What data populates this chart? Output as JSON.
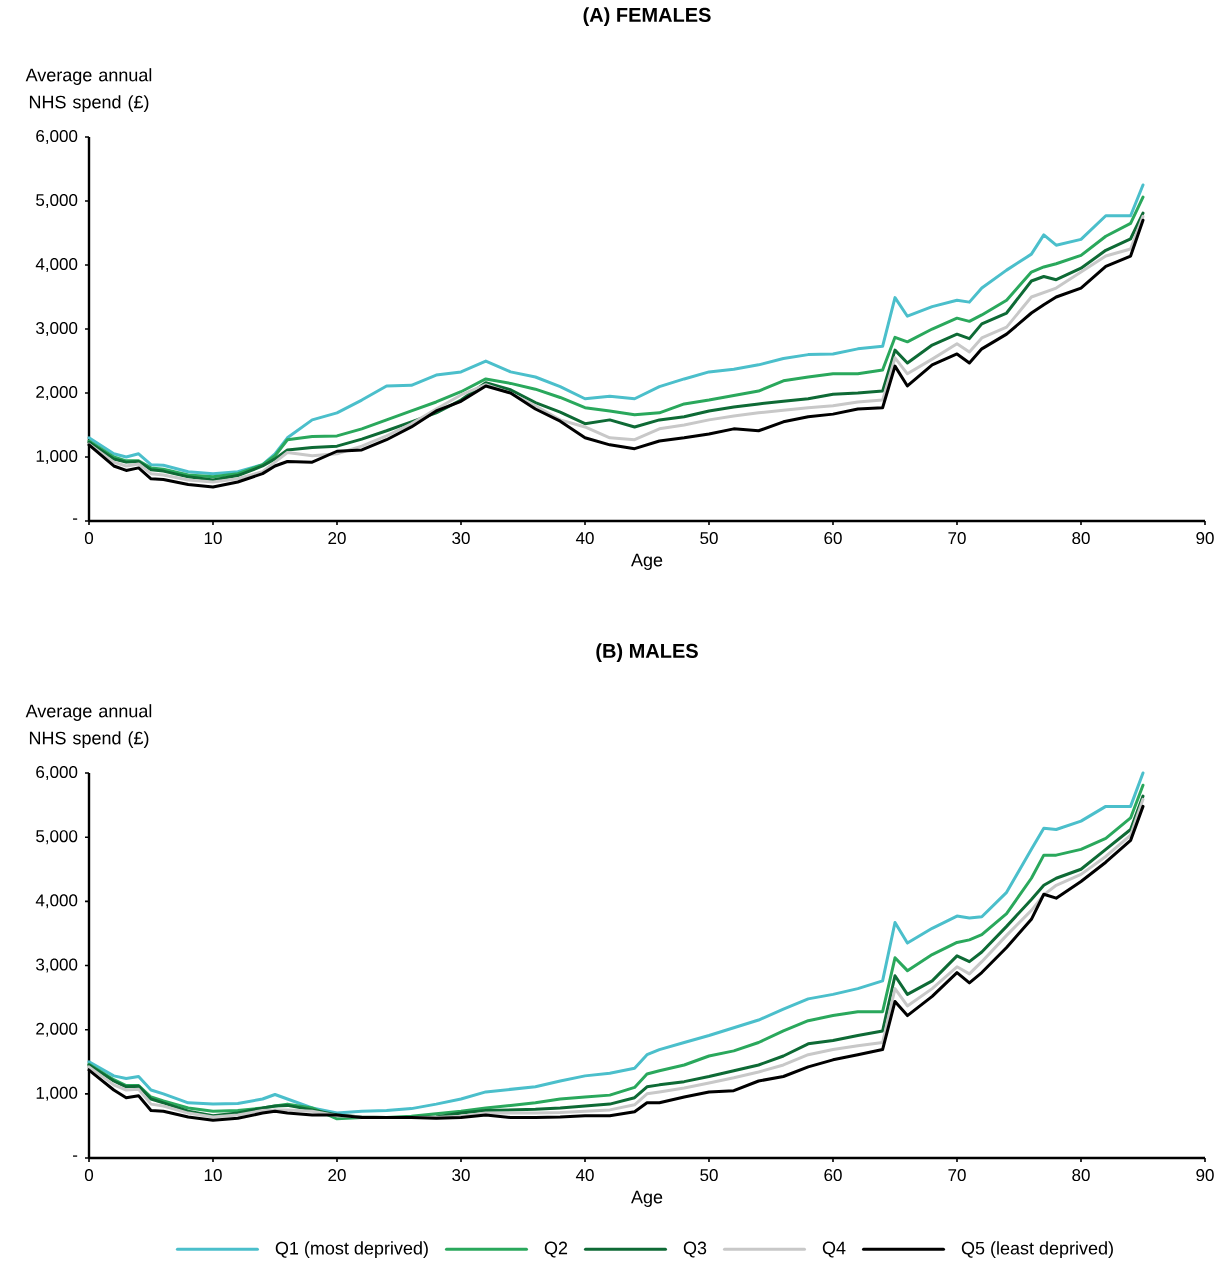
{
  "chart_data": [
    {
      "type": "line",
      "title": "(A) FEMALES",
      "xlabel": "Age",
      "ylabel": "Average annual NHS spend (£)",
      "x": [
        0,
        2,
        3,
        4,
        5,
        6,
        8,
        10,
        12,
        14,
        15,
        16,
        18,
        20,
        22,
        24,
        26,
        28,
        30,
        32,
        34,
        36,
        38,
        40,
        42,
        44,
        46,
        48,
        50,
        52,
        54,
        56,
        58,
        60,
        62,
        64,
        65,
        66,
        68,
        70,
        71,
        72,
        74,
        76,
        77,
        78,
        80,
        82,
        84,
        85
      ],
      "xlim": [
        0,
        90
      ],
      "xticks": [
        0,
        10,
        20,
        30,
        40,
        50,
        60,
        70,
        80,
        90
      ],
      "ylim": [
        0,
        6000
      ],
      "yticks": [
        {
          "value": 0,
          "label": "-"
        },
        {
          "value": 1000,
          "label": "1,000"
        },
        {
          "value": 2000,
          "label": "2,000"
        },
        {
          "value": 3000,
          "label": "3,000"
        },
        {
          "value": 4000,
          "label": "4,000"
        },
        {
          "value": 5000,
          "label": "5,000"
        },
        {
          "value": 6000,
          "label": "6,000"
        }
      ],
      "series": [
        {
          "color": "#4bbfcb",
          "values": [
            1300,
            1050,
            1000,
            1050,
            880,
            870,
            770,
            740,
            770,
            880,
            1050,
            1300,
            1580,
            1690,
            1890,
            2110,
            2120,
            2280,
            2330,
            2500,
            2330,
            2250,
            2100,
            1910,
            1950,
            1910,
            2100,
            2220,
            2330,
            2370,
            2440,
            2540,
            2600,
            2610,
            2690,
            2730,
            3490,
            3200,
            3350,
            3450,
            3420,
            3640,
            3920,
            4170,
            4470,
            4310,
            4400,
            4770,
            4770,
            5250
          ]
        },
        {
          "color": "#2aa85c",
          "values": [
            1250,
            1000,
            940,
            940,
            830,
            810,
            720,
            690,
            740,
            880,
            1020,
            1270,
            1320,
            1330,
            1440,
            1580,
            1720,
            1860,
            2020,
            2220,
            2150,
            2060,
            1930,
            1770,
            1720,
            1660,
            1690,
            1830,
            1890,
            1960,
            2030,
            2190,
            2250,
            2300,
            2300,
            2360,
            2870,
            2800,
            3000,
            3170,
            3120,
            3220,
            3450,
            3890,
            3970,
            4020,
            4150,
            4450,
            4650,
            5060
          ]
        },
        {
          "color": "#0e6a35",
          "values": [
            1230,
            970,
            920,
            930,
            800,
            780,
            690,
            640,
            710,
            860,
            970,
            1110,
            1150,
            1170,
            1280,
            1410,
            1550,
            1690,
            1890,
            2160,
            2050,
            1850,
            1700,
            1520,
            1580,
            1470,
            1580,
            1630,
            1720,
            1780,
            1830,
            1870,
            1910,
            1980,
            2000,
            2030,
            2670,
            2470,
            2750,
            2920,
            2850,
            3080,
            3250,
            3750,
            3820,
            3770,
            3950,
            4230,
            4410,
            4810
          ]
        },
        {
          "color": "#c8c8c8",
          "values": [
            1200,
            920,
            860,
            890,
            740,
            720,
            640,
            610,
            660,
            770,
            920,
            1070,
            1020,
            1050,
            1170,
            1330,
            1520,
            1750,
            1970,
            2130,
            2000,
            1800,
            1580,
            1470,
            1300,
            1270,
            1440,
            1500,
            1580,
            1640,
            1690,
            1730,
            1770,
            1800,
            1860,
            1890,
            2550,
            2300,
            2530,
            2770,
            2640,
            2860,
            3030,
            3500,
            3570,
            3640,
            3890,
            4140,
            4250,
            4760
          ]
        },
        {
          "color": "#000000",
          "values": [
            1190,
            860,
            790,
            830,
            660,
            650,
            570,
            530,
            610,
            740,
            860,
            930,
            920,
            1090,
            1110,
            1270,
            1470,
            1720,
            1870,
            2110,
            2000,
            1750,
            1560,
            1300,
            1190,
            1130,
            1250,
            1300,
            1360,
            1440,
            1410,
            1550,
            1630,
            1670,
            1750,
            1770,
            2420,
            2110,
            2440,
            2610,
            2470,
            2690,
            2920,
            3250,
            3380,
            3500,
            3640,
            3980,
            4140,
            4700
          ]
        }
      ]
    },
    {
      "type": "line",
      "title": "(B) MALES",
      "xlabel": "Age",
      "ylabel": "Average annual NHS spend (£)",
      "legend": "bottom",
      "x": [
        0,
        2,
        3,
        4,
        5,
        6,
        8,
        10,
        12,
        14,
        15,
        16,
        18,
        20,
        22,
        24,
        26,
        28,
        30,
        32,
        34,
        36,
        38,
        40,
        42,
        44,
        45,
        46,
        48,
        50,
        52,
        54,
        56,
        58,
        60,
        62,
        64,
        65,
        66,
        68,
        70,
        71,
        72,
        74,
        76,
        77,
        78,
        80,
        82,
        84,
        85
      ],
      "xlim": [
        0,
        90
      ],
      "xticks": [
        0,
        10,
        20,
        30,
        40,
        50,
        60,
        70,
        80,
        90
      ],
      "ylim": [
        0,
        6000
      ],
      "yticks": [
        {
          "value": 0,
          "label": "-"
        },
        {
          "value": 1000,
          "label": "1,000"
        },
        {
          "value": 2000,
          "label": "2,000"
        },
        {
          "value": 3000,
          "label": "3,000"
        },
        {
          "value": 4000,
          "label": "4,000"
        },
        {
          "value": 5000,
          "label": "5,000"
        },
        {
          "value": 6000,
          "label": "6,000"
        }
      ],
      "series": [
        {
          "name": "Q1 (most deprived)",
          "color": "#4bbfcb",
          "values": [
            1500,
            1280,
            1240,
            1270,
            1060,
            1000,
            860,
            840,
            850,
            920,
            990,
            920,
            780,
            700,
            730,
            740,
            770,
            840,
            920,
            1030,
            1070,
            1110,
            1200,
            1280,
            1320,
            1400,
            1610,
            1690,
            1800,
            1910,
            2030,
            2150,
            2320,
            2480,
            2550,
            2640,
            2760,
            3670,
            3350,
            3580,
            3770,
            3740,
            3760,
            4140,
            4810,
            5140,
            5120,
            5250,
            5480,
            5480,
            6000
          ]
        },
        {
          "name": "Q2",
          "color": "#2aa85c",
          "values": [
            1460,
            1220,
            1130,
            1130,
            950,
            890,
            780,
            730,
            740,
            780,
            810,
            840,
            780,
            610,
            630,
            630,
            650,
            690,
            730,
            780,
            820,
            860,
            920,
            950,
            980,
            1100,
            1310,
            1360,
            1450,
            1590,
            1670,
            1800,
            1980,
            2140,
            2220,
            2280,
            2280,
            3120,
            2920,
            3170,
            3360,
            3400,
            3480,
            3810,
            4360,
            4720,
            4720,
            4810,
            4980,
            5300,
            5810
          ]
        },
        {
          "name": "Q3",
          "color": "#0e6a35",
          "values": [
            1450,
            1200,
            1110,
            1120,
            920,
            860,
            730,
            660,
            700,
            780,
            810,
            820,
            750,
            670,
            640,
            630,
            630,
            640,
            700,
            740,
            750,
            760,
            780,
            810,
            840,
            940,
            1110,
            1140,
            1190,
            1270,
            1360,
            1450,
            1590,
            1780,
            1830,
            1910,
            1980,
            2840,
            2550,
            2760,
            3150,
            3060,
            3210,
            3610,
            4030,
            4250,
            4360,
            4500,
            4810,
            5120,
            5640
          ]
        },
        {
          "name": "Q4",
          "color": "#c8c8c8",
          "values": [
            1420,
            1140,
            1060,
            1070,
            840,
            810,
            700,
            640,
            670,
            740,
            750,
            750,
            730,
            660,
            640,
            630,
            630,
            630,
            650,
            700,
            700,
            700,
            710,
            730,
            750,
            830,
            1000,
            1030,
            1090,
            1170,
            1250,
            1340,
            1450,
            1610,
            1690,
            1750,
            1800,
            2640,
            2370,
            2640,
            2980,
            2870,
            3060,
            3470,
            3860,
            4100,
            4250,
            4420,
            4700,
            5030,
            5590
          ]
        },
        {
          "name": "Q5 (least deprived)",
          "color": "#000000",
          "values": [
            1370,
            1060,
            940,
            970,
            740,
            730,
            640,
            590,
            620,
            700,
            730,
            700,
            670,
            670,
            630,
            630,
            630,
            620,
            630,
            670,
            630,
            630,
            640,
            660,
            660,
            720,
            860,
            860,
            950,
            1030,
            1050,
            1200,
            1270,
            1420,
            1530,
            1610,
            1690,
            2440,
            2220,
            2520,
            2890,
            2730,
            2890,
            3280,
            3720,
            4110,
            4050,
            4310,
            4610,
            4950,
            5480
          ]
        }
      ]
    }
  ]
}
